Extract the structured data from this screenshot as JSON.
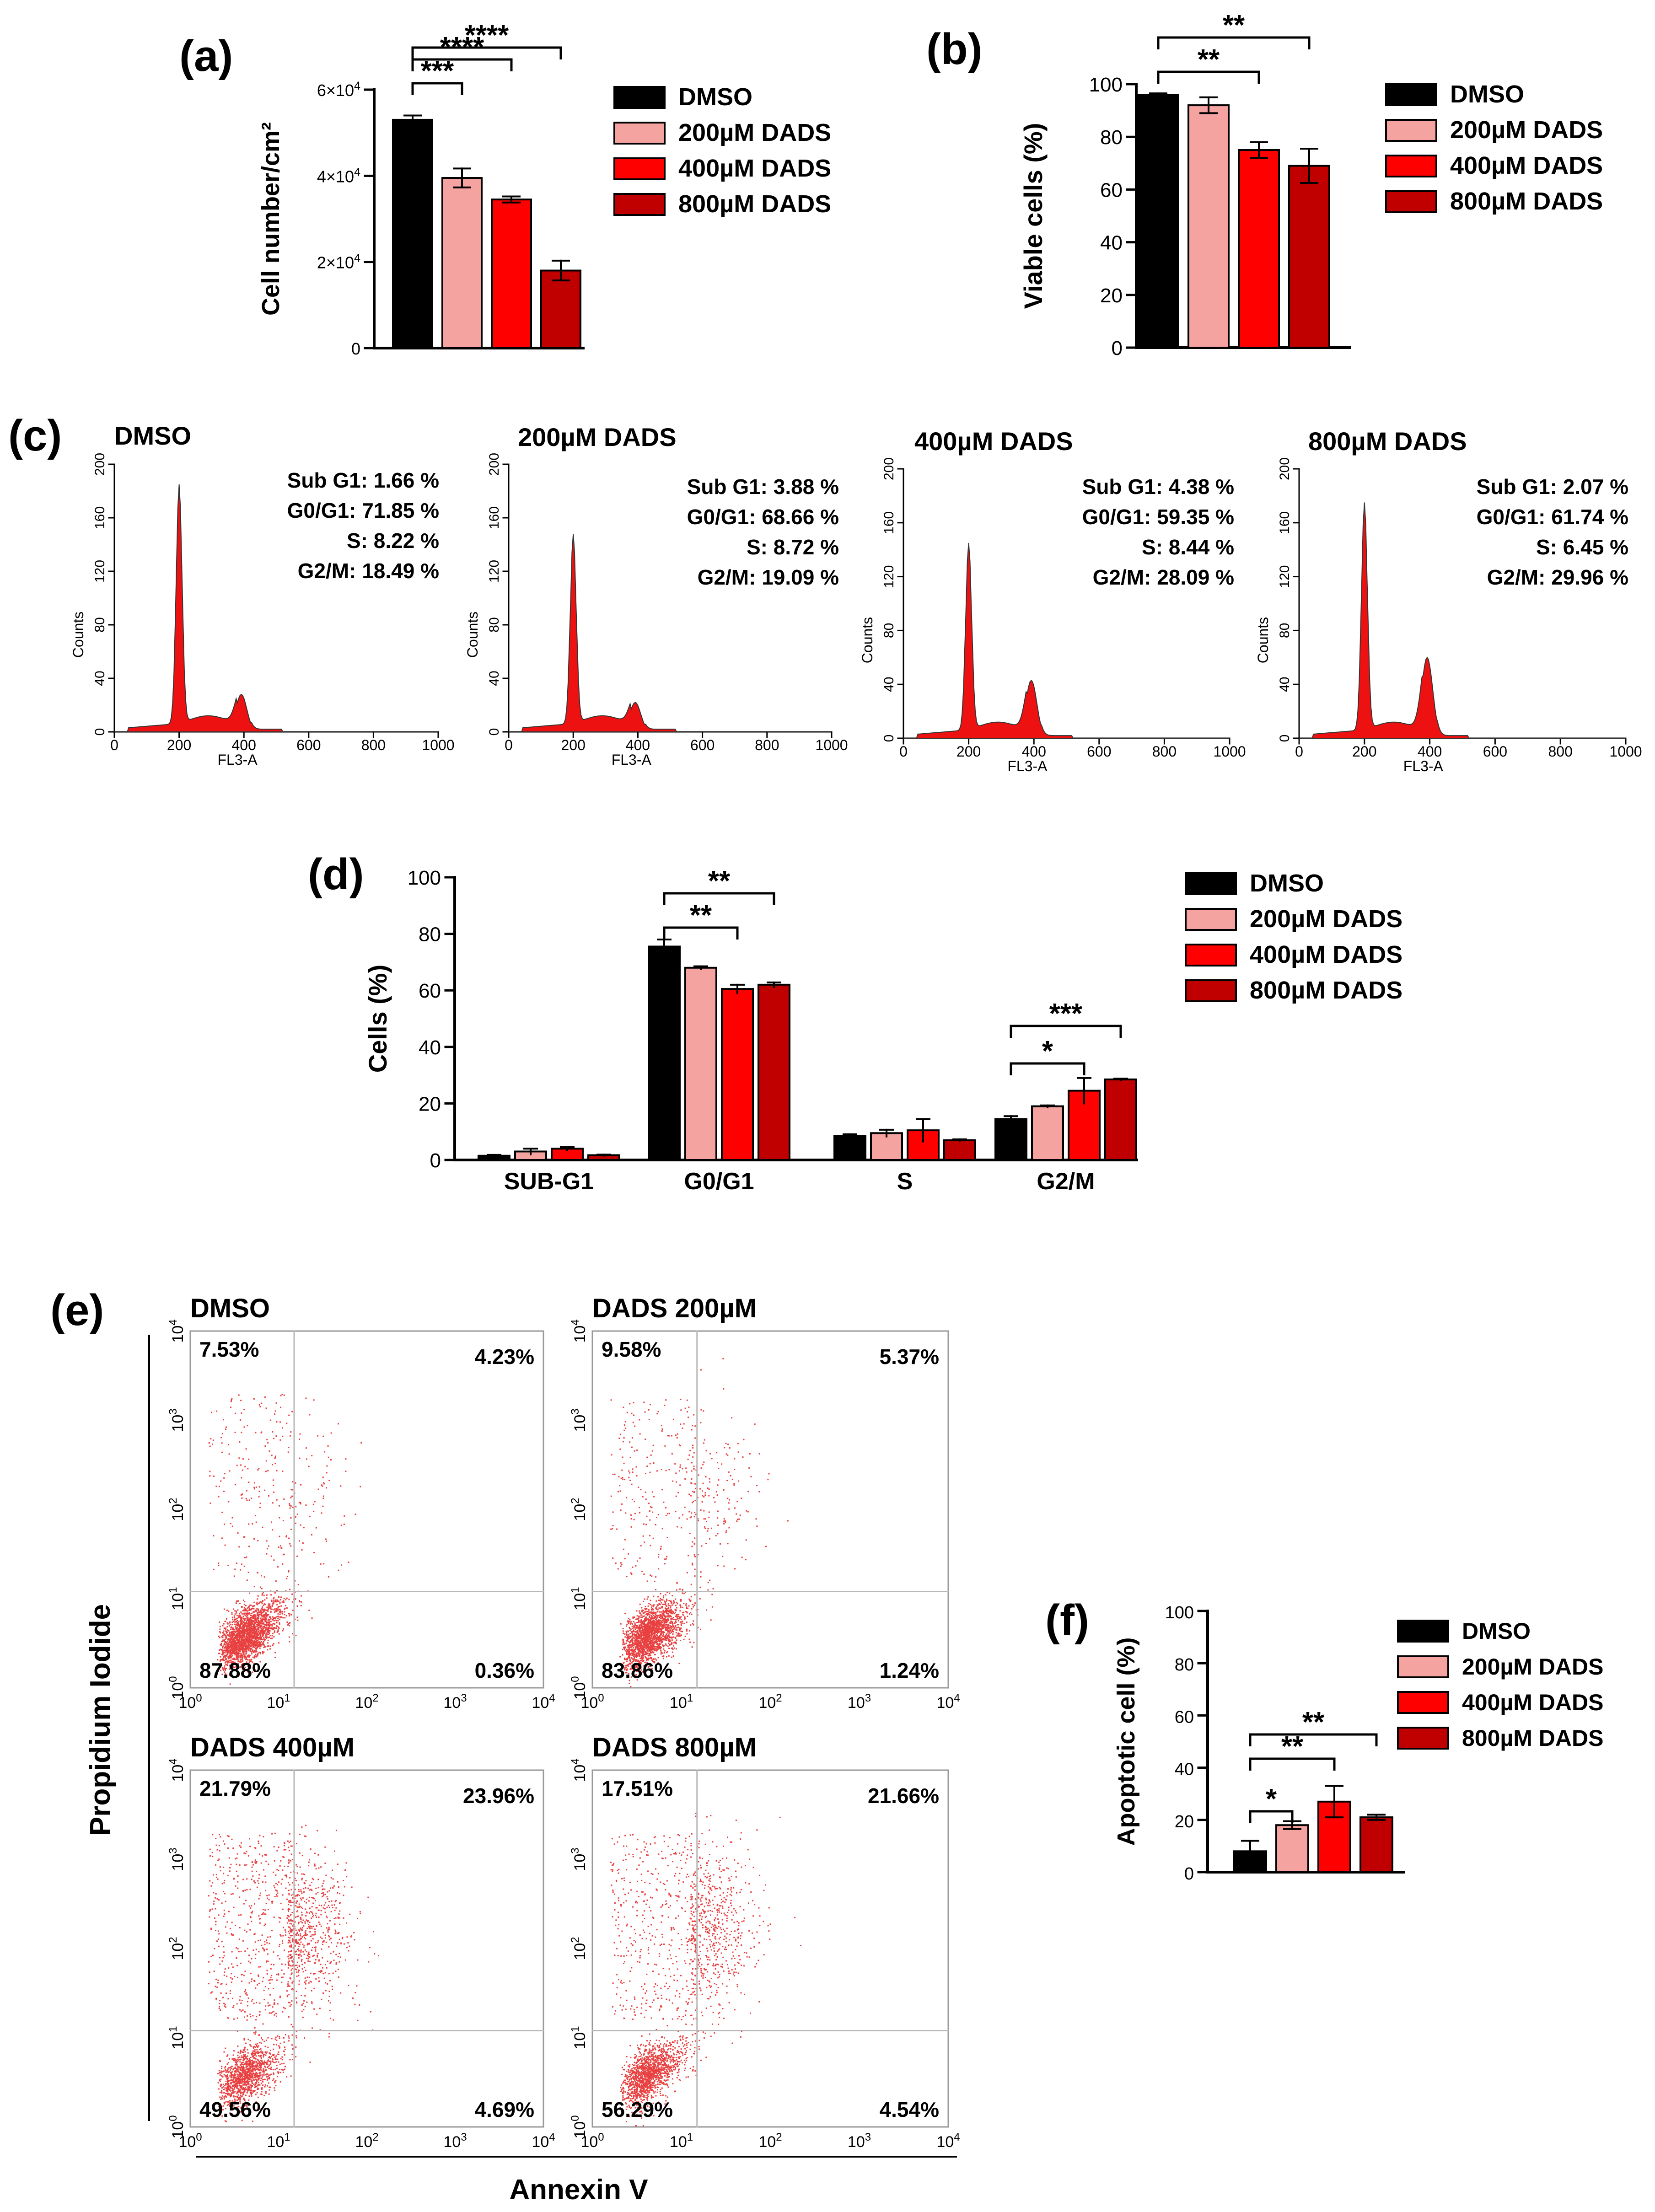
{
  "colors": {
    "DMSO": "#000000",
    "200µM DADS": "#f4a3a0",
    "400µM DADS": "#ff0000",
    "800µM DADS": "#c00000",
    "histogram_fill": "#ee1111",
    "dot": "#e84040",
    "quadrant_line": "#b8b8b8"
  },
  "chart_data": [
    {
      "panel": "(a)",
      "type": "bar",
      "ylabel": "Cell number/cm²",
      "ylim": [
        0,
        60000
      ],
      "yticks": [
        {
          "v": 0,
          "base": "0",
          "exp": ""
        },
        {
          "v": 20000,
          "base": "2×10",
          "exp": "4"
        },
        {
          "v": 40000,
          "base": "4×10",
          "exp": "4"
        },
        {
          "v": 60000,
          "base": "6×10",
          "exp": "4"
        }
      ],
      "categories": [
        "DMSO",
        "200µM DADS",
        "400µM DADS",
        "800µM DADS"
      ],
      "values": [
        53000,
        39500,
        34500,
        18000
      ],
      "errors": [
        1000,
        2200,
        700,
        2300
      ],
      "legend": [
        "DMSO",
        "200µM DADS",
        "400µM DADS",
        "800µM DADS"
      ],
      "significance": [
        {
          "from": 0,
          "to": 1,
          "label": "***"
        },
        {
          "from": 0,
          "to": 2,
          "label": "****"
        },
        {
          "from": 0,
          "to": 3,
          "label": "****"
        }
      ]
    },
    {
      "panel": "(b)",
      "type": "bar",
      "ylabel": "Viable cells (%)",
      "ylim": [
        0,
        100
      ],
      "yticks": [
        0,
        20,
        40,
        60,
        80,
        100
      ],
      "categories": [
        "DMSO",
        "200µM DADS",
        "400µM DADS",
        "800µM DADS"
      ],
      "values": [
        96,
        92,
        75,
        69
      ],
      "errors": [
        0.5,
        3,
        3,
        6.5
      ],
      "legend": [
        "DMSO",
        "200µM DADS",
        "400µM DADS",
        "800µM DADS"
      ],
      "significance": [
        {
          "from": 0,
          "to": 2,
          "label": "**"
        },
        {
          "from": 0,
          "to": 3,
          "label": "**"
        }
      ]
    },
    {
      "panel": "(c)",
      "type": "area",
      "xlabel": "FL3-A",
      "ylabel": "Counts",
      "xticks": [
        0,
        200,
        400,
        600,
        800,
        1000
      ],
      "yticks": [
        0,
        40,
        80,
        120,
        160,
        200
      ],
      "xlim": [
        0,
        1000
      ],
      "ylim": [
        0,
        200
      ],
      "histograms": [
        {
          "title": "DMSO",
          "stats": [
            "Sub G1: 1.66 %",
            "G0/G1: 71.85 %",
            "S: 8.22 %",
            "G2/M: 18.49 %"
          ],
          "g1_peak": 185,
          "g2_peak": 28
        },
        {
          "title": "200µM DADS",
          "stats": [
            "Sub G1: 3.88 %",
            "G0/G1: 68.66 %",
            "S: 8.72 %",
            "G2/M: 19.09 %"
          ],
          "g1_peak": 148,
          "g2_peak": 22
        },
        {
          "title": "400µM DADS",
          "stats": [
            "Sub G1: 4.38 %",
            "G0/G1: 59.35 %",
            "S: 8.44 %",
            "G2/M: 28.09 %"
          ],
          "g1_peak": 145,
          "g2_peak": 43
        },
        {
          "title": "800µM DADS",
          "stats": [
            "Sub G1: 2.07 %",
            "G0/G1: 61.74 %",
            "S: 6.45 %",
            "G2/M: 29.96 %"
          ],
          "g1_peak": 175,
          "g2_peak": 60
        }
      ]
    },
    {
      "panel": "(d)",
      "type": "bar",
      "ylabel": "Cells (%)",
      "ylim": [
        0,
        100
      ],
      "yticks": [
        0,
        20,
        40,
        60,
        80,
        100
      ],
      "categories": [
        "SUB-G1",
        "G0/G1",
        "S",
        "G2/M"
      ],
      "legend": [
        "DMSO",
        "200µM DADS",
        "400µM DADS",
        "800µM DADS"
      ],
      "series": [
        {
          "name": "DMSO",
          "values": [
            1.5,
            75.5,
            8.5,
            14.5
          ],
          "errors": [
            0.3,
            2.5,
            0.6,
            1
          ]
        },
        {
          "name": "200µM DADS",
          "values": [
            3,
            68,
            9.5,
            19
          ],
          "errors": [
            1,
            0.5,
            1.2,
            0.3
          ]
        },
        {
          "name": "400µM DADS",
          "values": [
            4,
            60.5,
            10.5,
            24.5
          ],
          "errors": [
            0.6,
            1.5,
            4,
            4.5
          ]
        },
        {
          "name": "800µM DADS",
          "values": [
            1.7,
            62,
            7,
            28.5
          ],
          "errors": [
            0.2,
            0.8,
            0.3,
            0.3
          ]
        }
      ],
      "significance": [
        {
          "group": 1,
          "from": 0,
          "to": 2,
          "label": "**"
        },
        {
          "group": 1,
          "from": 0,
          "to": 3,
          "label": "**"
        },
        {
          "group": 3,
          "from": 0,
          "to": 2,
          "label": "*"
        },
        {
          "group": 3,
          "from": 0,
          "to": 3,
          "label": "***"
        }
      ]
    },
    {
      "panel": "(e)",
      "type": "scatter",
      "xlabel": "Annexin V",
      "ylabel": "Propidium Iodide",
      "axis_scale": "log",
      "xlim": [
        1,
        10000
      ],
      "ylim": [
        1,
        10000
      ],
      "tick_labels": [
        {
          "base": "10",
          "exp": "0"
        },
        {
          "base": "10",
          "exp": "1"
        },
        {
          "base": "10",
          "exp": "2"
        },
        {
          "base": "10",
          "exp": "3"
        },
        {
          "base": "10",
          "exp": "4"
        }
      ],
      "quadrant_gate": {
        "x": 15,
        "y": 12
      },
      "plots": [
        {
          "title": "DMSO",
          "ul": "7.53%",
          "ur": "4.23%",
          "ll": "87.88%",
          "lr": "0.36%"
        },
        {
          "title": "DADS 200µM",
          "ul": "9.58%",
          "ur": "5.37%",
          "ll": "83.86%",
          "lr": "1.24%"
        },
        {
          "title": "DADS 400µM",
          "ul": "21.79%",
          "ur": "23.96%",
          "ll": "49.56%",
          "lr": "4.69%"
        },
        {
          "title": "DADS 800µM",
          "ul": "17.51%",
          "ur": "21.66%",
          "ll": "56.29%",
          "lr": "4.54%"
        }
      ]
    },
    {
      "panel": "(f)",
      "type": "bar",
      "ylabel": "Apoptotic cell (%)",
      "ylim": [
        0,
        100
      ],
      "yticks": [
        0,
        20,
        40,
        60,
        80,
        100
      ],
      "categories": [
        "DMSO",
        "200µM DADS",
        "400µM DADS",
        "800µM DADS"
      ],
      "values": [
        8,
        18,
        27,
        21
      ],
      "errors": [
        4,
        1.5,
        6,
        1
      ],
      "legend": [
        "DMSO",
        "200µM DADS",
        "400µM DADS",
        "800µM DADS"
      ],
      "significance": [
        {
          "from": 0,
          "to": 1,
          "label": "*"
        },
        {
          "from": 0,
          "to": 2,
          "label": "**"
        },
        {
          "from": 0,
          "to": 3,
          "label": "**"
        }
      ]
    }
  ]
}
